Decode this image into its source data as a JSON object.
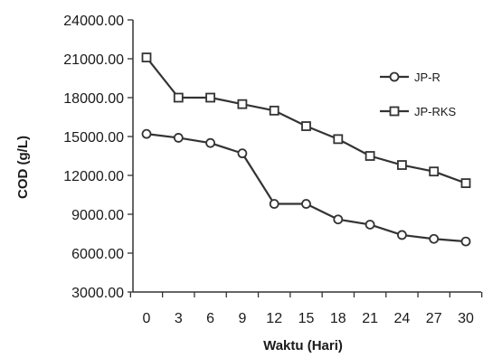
{
  "chart_data": {
    "type": "line",
    "title": "",
    "xlabel": "Waktu (Hari)",
    "ylabel": "COD  (g/L)",
    "x": [
      0,
      3,
      6,
      9,
      12,
      15,
      18,
      21,
      24,
      27,
      30
    ],
    "x_tick_labels": [
      "0",
      "3",
      "6",
      "9",
      "12",
      "15",
      "18",
      "21",
      "24",
      "27",
      "30"
    ],
    "ylim": [
      3000,
      24000
    ],
    "y_ticks": [
      3000,
      6000,
      9000,
      12000,
      15000,
      18000,
      21000,
      24000
    ],
    "y_tick_labels": [
      "3000.00",
      "6000.00",
      "9000.00",
      "12000.00",
      "15000.00",
      "18000.00",
      "21000.00",
      "24000.00"
    ],
    "grid": false,
    "legend_position": "right",
    "series": [
      {
        "name": "JP-R",
        "marker": "circle",
        "values": [
          15200,
          14900,
          14500,
          13700,
          9800,
          9800,
          8600,
          8200,
          7400,
          7100,
          6900
        ]
      },
      {
        "name": "JP-RKS",
        "marker": "square",
        "values": [
          21100,
          18000,
          18000,
          17500,
          17000,
          15800,
          14800,
          13500,
          12800,
          12300,
          11400
        ]
      }
    ],
    "colors": {
      "line": "#333333",
      "marker_fill": "#ffffff",
      "axis": "#333333"
    }
  }
}
